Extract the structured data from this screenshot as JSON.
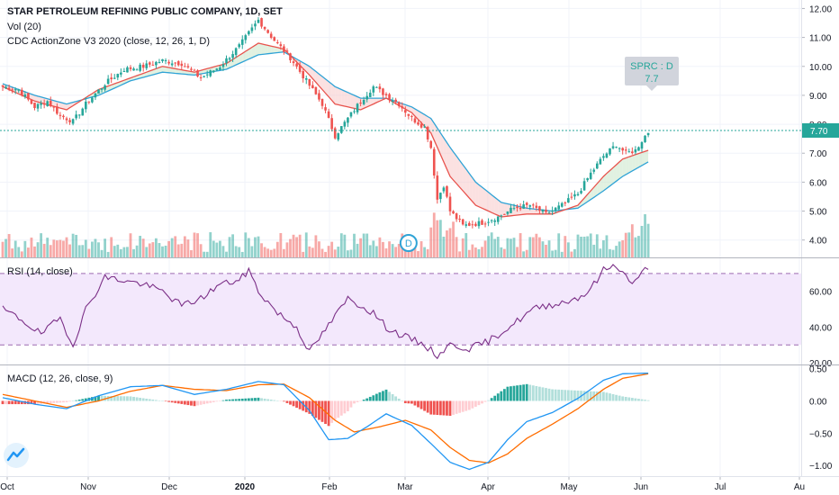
{
  "header": {
    "title": "STAR PETROLEUM REFINING PUBLIC COMPANY, 1D, SET",
    "vol_label": "Vol (20)",
    "zone_label": "CDC ActionZone V3 2020 (close, 12, 26, 1, D)"
  },
  "rsi": {
    "label": "RSI (14, close)"
  },
  "macd": {
    "label": "MACD (12, 26, close, 9)"
  },
  "callout": {
    "line1": "SPRC : D",
    "line2": "7.7"
  },
  "price_tag": "7.70",
  "marker_letter": "D",
  "colors": {
    "up": "#26a69a",
    "down": "#ef5350",
    "ema_fast": "#e8534d",
    "ema_slow": "#2fa3d6",
    "rsi_line": "#7b2f87",
    "rsi_band": "#f3e8fc",
    "macd_line": "#2196f3",
    "signal_line": "#ff6d00"
  },
  "chart_data": [
    {
      "type": "candlestick",
      "title": "STAR PETROLEUM REFINING PUBLIC COMPANY, 1D, SET",
      "x_ticks": [
        "Oct",
        "Nov",
        "Dec",
        "2020",
        "Feb",
        "Mar",
        "Apr",
        "May",
        "Jun",
        "Jul",
        "Au"
      ],
      "y_ticks": [
        "4.00",
        "5.00",
        "6.00",
        "7.00",
        "8.00",
        "9.00",
        "10.00",
        "11.00",
        "12.00"
      ],
      "ylim": [
        3.4,
        12.2
      ],
      "last_price": 7.7,
      "close_anchors": [
        [
          0,
          9.3
        ],
        [
          5,
          9.2
        ],
        [
          10,
          8.6
        ],
        [
          14,
          8.8
        ],
        [
          18,
          8.3
        ],
        [
          22,
          8.1
        ],
        [
          26,
          8.7
        ],
        [
          32,
          9.4
        ],
        [
          38,
          9.9
        ],
        [
          44,
          10.0
        ],
        [
          50,
          10.2
        ],
        [
          56,
          10.1
        ],
        [
          62,
          9.6
        ],
        [
          68,
          10.0
        ],
        [
          74,
          10.7
        ],
        [
          80,
          11.6
        ],
        [
          85,
          10.9
        ],
        [
          90,
          10.3
        ],
        [
          95,
          9.5
        ],
        [
          100,
          8.7
        ],
        [
          104,
          7.6
        ],
        [
          108,
          8.2
        ],
        [
          112,
          8.8
        ],
        [
          116,
          9.3
        ],
        [
          120,
          9.0
        ],
        [
          124,
          8.7
        ],
        [
          128,
          8.2
        ],
        [
          132,
          7.9
        ],
        [
          134,
          7.2
        ],
        [
          136,
          5.4
        ],
        [
          138,
          5.9
        ],
        [
          140,
          5.0
        ],
        [
          144,
          4.5
        ],
        [
          150,
          4.6
        ],
        [
          155,
          4.8
        ],
        [
          160,
          5.1
        ],
        [
          165,
          5.2
        ],
        [
          170,
          4.9
        ],
        [
          175,
          5.2
        ],
        [
          180,
          5.6
        ],
        [
          184,
          6.3
        ],
        [
          188,
          6.9
        ],
        [
          192,
          7.3
        ],
        [
          195,
          7.0
        ],
        [
          198,
          7.1
        ],
        [
          201,
          7.6
        ],
        [
          202,
          7.7
        ]
      ],
      "ema_fast_anchors": [
        [
          0,
          9.3
        ],
        [
          10,
          8.8
        ],
        [
          20,
          8.5
        ],
        [
          30,
          9.2
        ],
        [
          40,
          9.6
        ],
        [
          50,
          10.0
        ],
        [
          60,
          9.8
        ],
        [
          70,
          10.1
        ],
        [
          80,
          10.8
        ],
        [
          88,
          10.6
        ],
        [
          96,
          9.7
        ],
        [
          104,
          8.7
        ],
        [
          112,
          8.5
        ],
        [
          120,
          8.9
        ],
        [
          128,
          8.4
        ],
        [
          134,
          7.7
        ],
        [
          140,
          6.2
        ],
        [
          148,
          5.2
        ],
        [
          156,
          4.8
        ],
        [
          164,
          4.9
        ],
        [
          172,
          4.9
        ],
        [
          180,
          5.2
        ],
        [
          188,
          6.2
        ],
        [
          194,
          6.8
        ],
        [
          202,
          7.1
        ]
      ],
      "ema_slow_anchors": [
        [
          0,
          9.4
        ],
        [
          10,
          9.0
        ],
        [
          20,
          8.7
        ],
        [
          30,
          9.0
        ],
        [
          40,
          9.5
        ],
        [
          50,
          9.8
        ],
        [
          60,
          9.7
        ],
        [
          70,
          9.9
        ],
        [
          80,
          10.4
        ],
        [
          88,
          10.5
        ],
        [
          96,
          10.0
        ],
        [
          104,
          9.3
        ],
        [
          112,
          8.9
        ],
        [
          120,
          8.9
        ],
        [
          128,
          8.6
        ],
        [
          134,
          8.2
        ],
        [
          140,
          7.2
        ],
        [
          148,
          6.0
        ],
        [
          156,
          5.3
        ],
        [
          164,
          5.1
        ],
        [
          172,
          5.0
        ],
        [
          180,
          5.1
        ],
        [
          188,
          5.7
        ],
        [
          194,
          6.2
        ],
        [
          202,
          6.7
        ]
      ],
      "signals": [
        {
          "label": "D",
          "x": 127
        }
      ]
    },
    {
      "type": "line",
      "title": "RSI (14, close)",
      "y_ticks": [
        "20.00",
        "40.00",
        "60.00"
      ],
      "ylim": [
        19,
        77
      ],
      "band": [
        30,
        70
      ],
      "anchors": [
        [
          0,
          50
        ],
        [
          6,
          44
        ],
        [
          12,
          36
        ],
        [
          18,
          45
        ],
        [
          22,
          30
        ],
        [
          26,
          50
        ],
        [
          32,
          68
        ],
        [
          38,
          66
        ],
        [
          44,
          64
        ],
        [
          50,
          60
        ],
        [
          56,
          52
        ],
        [
          62,
          56
        ],
        [
          68,
          64
        ],
        [
          74,
          66
        ],
        [
          77,
          72
        ],
        [
          80,
          60
        ],
        [
          86,
          48
        ],
        [
          92,
          40
        ],
        [
          96,
          26
        ],
        [
          100,
          36
        ],
        [
          104,
          46
        ],
        [
          108,
          56
        ],
        [
          112,
          52
        ],
        [
          116,
          48
        ],
        [
          120,
          40
        ],
        [
          124,
          36
        ],
        [
          128,
          33
        ],
        [
          132,
          30
        ],
        [
          136,
          24
        ],
        [
          140,
          30
        ],
        [
          146,
          28
        ],
        [
          152,
          32
        ],
        [
          160,
          42
        ],
        [
          166,
          50
        ],
        [
          170,
          52
        ],
        [
          176,
          54
        ],
        [
          182,
          58
        ],
        [
          186,
          66
        ],
        [
          188,
          72
        ],
        [
          192,
          75
        ],
        [
          196,
          66
        ],
        [
          198,
          65
        ],
        [
          200,
          70
        ],
        [
          202,
          74
        ]
      ]
    },
    {
      "type": "bar+line",
      "title": "MACD (12, 26, close, 9)",
      "y_ticks": [
        "0.50",
        "0.00",
        "−0.50",
        "−1.00"
      ],
      "ylim": [
        -1.15,
        0.55
      ],
      "macd_anchors": [
        [
          0,
          0.05
        ],
        [
          10,
          -0.05
        ],
        [
          20,
          -0.12
        ],
        [
          30,
          0.08
        ],
        [
          40,
          0.22
        ],
        [
          50,
          0.24
        ],
        [
          60,
          0.1
        ],
        [
          70,
          0.18
        ],
        [
          80,
          0.3
        ],
        [
          88,
          0.25
        ],
        [
          96,
          -0.15
        ],
        [
          102,
          -0.6
        ],
        [
          108,
          -0.58
        ],
        [
          114,
          -0.4
        ],
        [
          120,
          -0.2
        ],
        [
          128,
          -0.38
        ],
        [
          134,
          -0.66
        ],
        [
          140,
          -0.95
        ],
        [
          146,
          -1.06
        ],
        [
          152,
          -0.95
        ],
        [
          158,
          -0.6
        ],
        [
          164,
          -0.32
        ],
        [
          172,
          -0.18
        ],
        [
          180,
          0.04
        ],
        [
          188,
          0.32
        ],
        [
          194,
          0.42
        ],
        [
          202,
          0.43
        ]
      ],
      "signal_anchors": [
        [
          0,
          0.1
        ],
        [
          10,
          0.0
        ],
        [
          20,
          -0.1
        ],
        [
          30,
          0.0
        ],
        [
          40,
          0.15
        ],
        [
          50,
          0.24
        ],
        [
          60,
          0.18
        ],
        [
          70,
          0.16
        ],
        [
          80,
          0.25
        ],
        [
          88,
          0.26
        ],
        [
          96,
          0.05
        ],
        [
          104,
          -0.3
        ],
        [
          110,
          -0.48
        ],
        [
          118,
          -0.4
        ],
        [
          126,
          -0.3
        ],
        [
          134,
          -0.45
        ],
        [
          140,
          -0.72
        ],
        [
          146,
          -0.92
        ],
        [
          152,
          -0.96
        ],
        [
          158,
          -0.82
        ],
        [
          164,
          -0.58
        ],
        [
          172,
          -0.36
        ],
        [
          180,
          -0.12
        ],
        [
          188,
          0.18
        ],
        [
          194,
          0.35
        ],
        [
          202,
          0.42
        ]
      ]
    }
  ],
  "logo": {
    "name": "tradingview-logo"
  }
}
